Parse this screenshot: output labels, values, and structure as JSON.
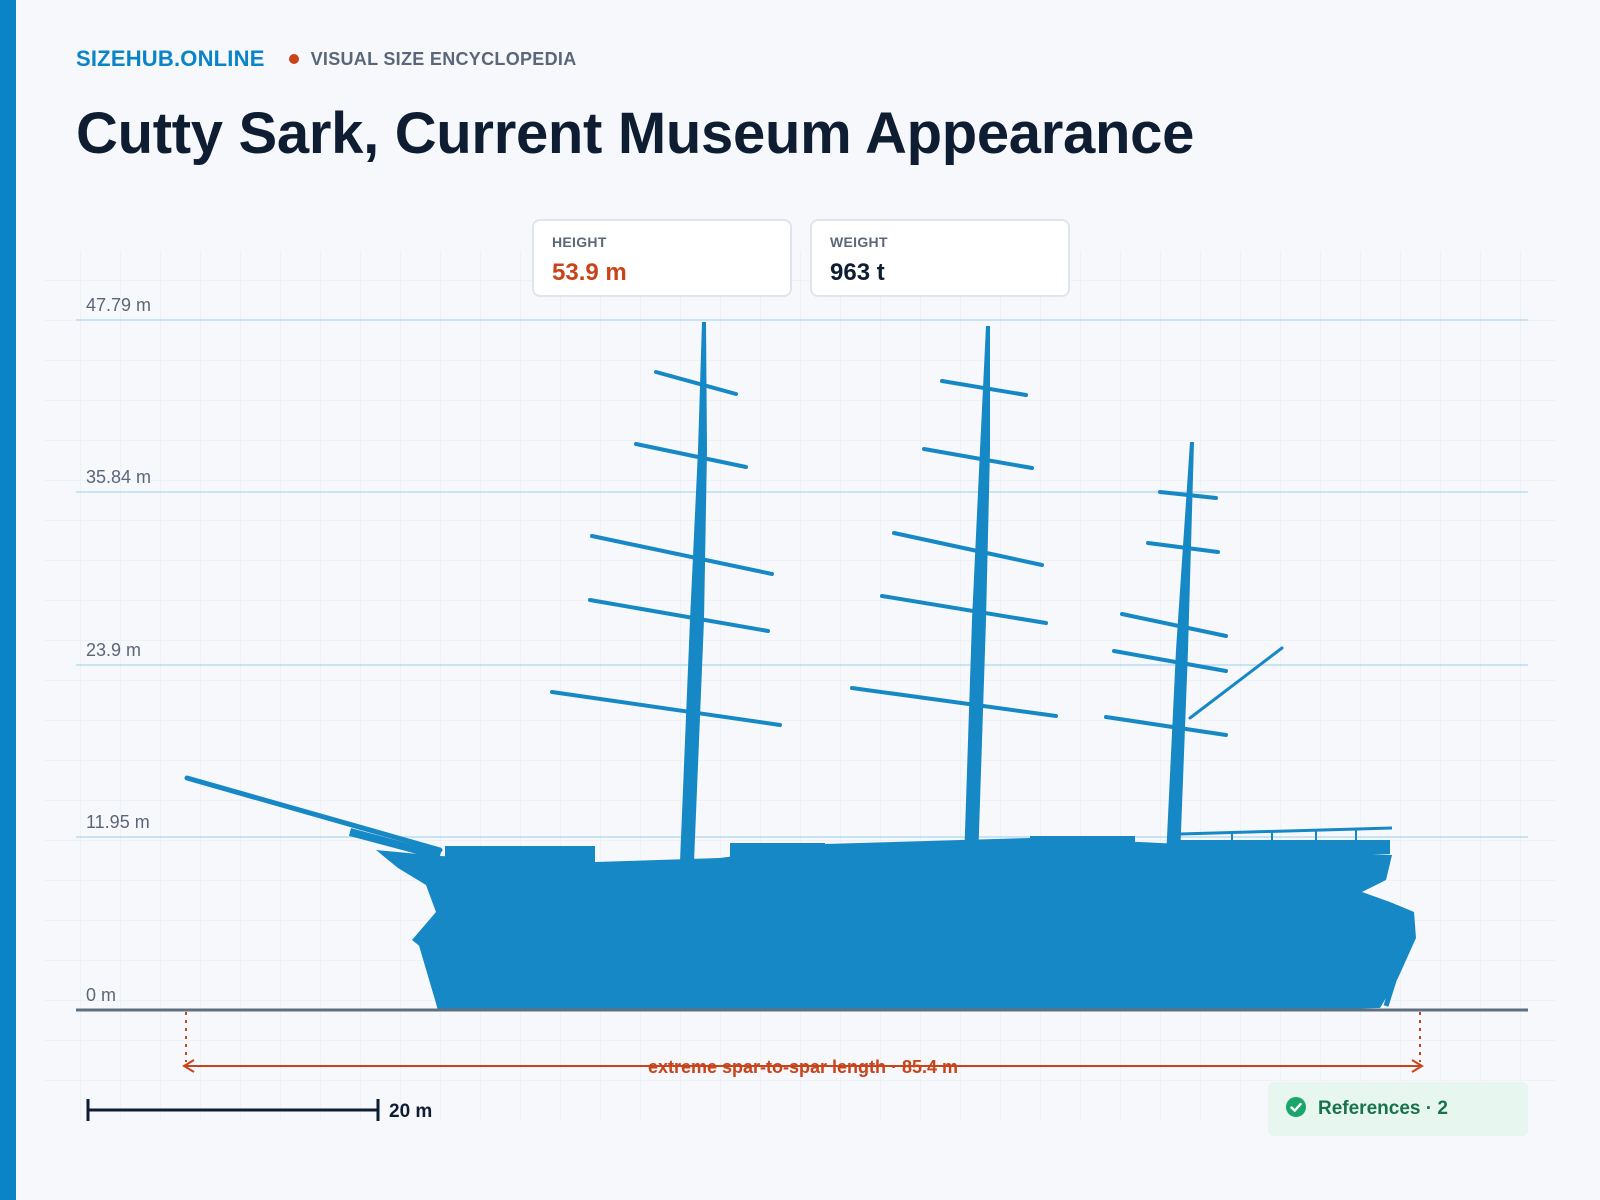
{
  "brand": "SIZEHUB.ONLINE",
  "tagline": "VISUAL SIZE ENCYCLOPEDIA",
  "title": "Cutty Sark, Current Museum Appearance",
  "stats": {
    "height_label": "HEIGHT",
    "height_value": "53.9 m",
    "weight_label": "WEIGHT",
    "weight_value": "963 t"
  },
  "scale": {
    "ticks": [
      "47.79 m",
      "35.84 m",
      "23.9 m",
      "11.95 m",
      "0 m"
    ],
    "bar_label": "20 m"
  },
  "dimension_label": "extreme spar-to-spar length · 85.4 m",
  "references_label": "References · 2",
  "colors": {
    "accent": "#0a84c6",
    "highlight": "#c8441b",
    "ship": "#1688c6",
    "success": "#17734c"
  },
  "icons": {
    "references": "check-circle-icon"
  }
}
